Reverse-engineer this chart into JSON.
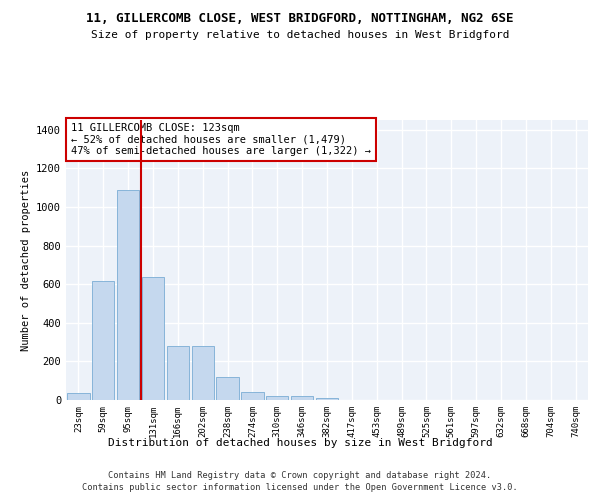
{
  "title1": "11, GILLERCOMB CLOSE, WEST BRIDGFORD, NOTTINGHAM, NG2 6SE",
  "title2": "Size of property relative to detached houses in West Bridgford",
  "xlabel": "Distribution of detached houses by size in West Bridgford",
  "ylabel": "Number of detached properties",
  "bar_labels": [
    "23sqm",
    "59sqm",
    "95sqm",
    "131sqm",
    "166sqm",
    "202sqm",
    "238sqm",
    "274sqm",
    "310sqm",
    "346sqm",
    "382sqm",
    "417sqm",
    "453sqm",
    "489sqm",
    "525sqm",
    "561sqm",
    "597sqm",
    "632sqm",
    "668sqm",
    "704sqm",
    "740sqm"
  ],
  "bar_values": [
    35,
    615,
    1085,
    635,
    280,
    280,
    120,
    43,
    20,
    20,
    12,
    0,
    0,
    0,
    0,
    0,
    0,
    0,
    0,
    0,
    0
  ],
  "bar_color": "#c5d8ee",
  "bar_edge_color": "#7aadd4",
  "vline_x": 2.5,
  "vline_color": "#cc0000",
  "annotation_text": "11 GILLERCOMB CLOSE: 123sqm\n← 52% of detached houses are smaller (1,479)\n47% of semi-detached houses are larger (1,322) →",
  "ylim": [
    0,
    1450
  ],
  "yticks": [
    0,
    200,
    400,
    600,
    800,
    1000,
    1200,
    1400
  ],
  "bg_color": "#edf2f9",
  "grid_color": "#ffffff",
  "footer1": "Contains HM Land Registry data © Crown copyright and database right 2024.",
  "footer2": "Contains public sector information licensed under the Open Government Licence v3.0."
}
